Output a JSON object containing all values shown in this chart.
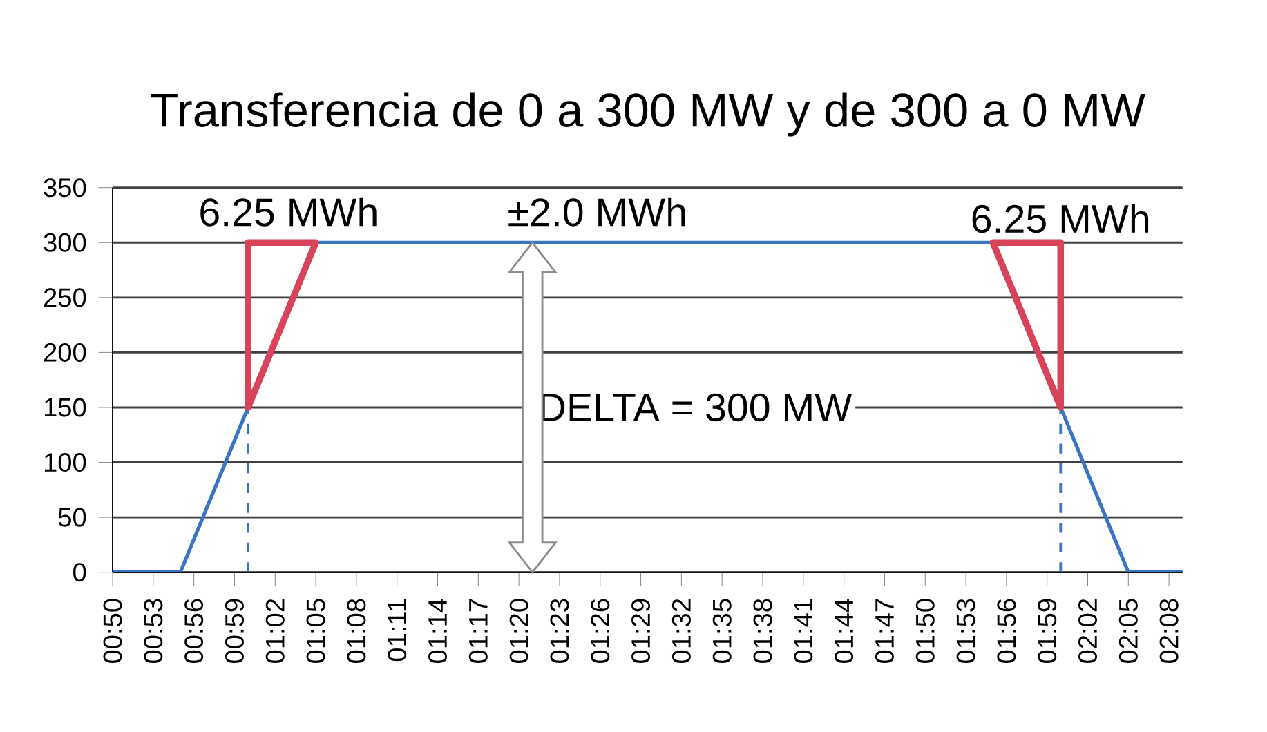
{
  "chart_data": {
    "type": "line",
    "title": "Transferencia de 0 a 300 MW y de 300 a 0 MW",
    "xlim": [
      0.833333,
      2.15
    ],
    "ylim": [
      0,
      350
    ],
    "yticks": [
      0,
      50,
      100,
      150,
      200,
      250,
      300,
      350
    ],
    "grid": "y",
    "xticks": [
      {
        "value": 0.833333,
        "label": "00:50"
      },
      {
        "value": 0.883333,
        "label": "00:53"
      },
      {
        "value": 0.933333,
        "label": "00:56"
      },
      {
        "value": 0.983333,
        "label": "00:59"
      },
      {
        "value": 1.033333,
        "label": "01:02"
      },
      {
        "value": 1.083333,
        "label": "01:05"
      },
      {
        "value": 1.133333,
        "label": "01:08"
      },
      {
        "value": 1.183333,
        "label": "01:11"
      },
      {
        "value": 1.233333,
        "label": "01:14"
      },
      {
        "value": 1.283333,
        "label": "01:17"
      },
      {
        "value": 1.333333,
        "label": "01:20"
      },
      {
        "value": 1.383333,
        "label": "01:23"
      },
      {
        "value": 1.433333,
        "label": "01:26"
      },
      {
        "value": 1.483333,
        "label": "01:29"
      },
      {
        "value": 1.533333,
        "label": "01:32"
      },
      {
        "value": 1.583333,
        "label": "01:35"
      },
      {
        "value": 1.633333,
        "label": "01:38"
      },
      {
        "value": 1.683333,
        "label": "01:41"
      },
      {
        "value": 1.733333,
        "label": "01:44"
      },
      {
        "value": 1.783333,
        "label": "01:47"
      },
      {
        "value": 1.833333,
        "label": "01:50"
      },
      {
        "value": 1.883333,
        "label": "01:53"
      },
      {
        "value": 1.933333,
        "label": "01:56"
      },
      {
        "value": 1.983333,
        "label": "01:59"
      },
      {
        "value": 2.033333,
        "label": "02:02"
      },
      {
        "value": 2.083333,
        "label": "02:05"
      },
      {
        "value": 2.133333,
        "label": "02:08"
      }
    ],
    "series": [
      {
        "color": "#3a75c4",
        "x": [
          0.833333,
          0.916667,
          1.083333,
          1.916667,
          2.083333,
          2.15
        ],
        "values": [
          0,
          0,
          300,
          300,
          0,
          0
        ]
      },
      {
        "color": "#3a75c4",
        "line_style": "dashed",
        "x": [
          1.0,
          1.0
        ],
        "values": [
          0,
          150
        ]
      },
      {
        "color": "#3a75c4",
        "line_style": "dashed",
        "x": [
          2.0,
          2.0
        ],
        "values": [
          0,
          150
        ]
      }
    ],
    "annotations": [
      "6.25 MWh",
      "±2.0 MWh",
      "6.25 MWh",
      "DELTA = 300 MW"
    ]
  }
}
